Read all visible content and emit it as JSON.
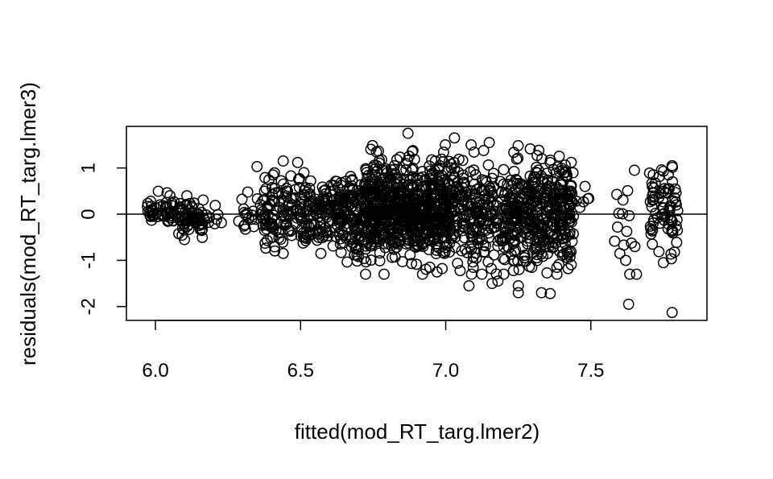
{
  "chart_data": {
    "type": "scatter",
    "title": "",
    "xlabel": "fitted(mod_RT_targ.lmer2)",
    "ylabel": "residuals(mod_RT_targ.lmer3)",
    "xlim": [
      5.9,
      7.9
    ],
    "ylim": [
      -2.3,
      1.9
    ],
    "x_ticks": [
      6.0,
      6.5,
      7.0,
      7.5
    ],
    "x_tick_labels": [
      "6.0",
      "6.5",
      "7.0",
      "7.5"
    ],
    "y_ticks": [
      -2,
      -1,
      0,
      1
    ],
    "y_tick_labels": [
      "-2",
      "-1",
      "0",
      "1"
    ],
    "reference_line_y": 0,
    "marker": "open-circle",
    "colors": {
      "marker": "#000000",
      "axis": "#000000",
      "background": "#ffffff"
    },
    "clusters": [
      {
        "x_range": [
          5.97,
          6.0
        ],
        "y_center": 0.05,
        "y_spread": 0.1,
        "count": 15
      },
      {
        "x_range": [
          6.0,
          6.08
        ],
        "y_center": 0.05,
        "y_spread": 0.15,
        "count": 35
      },
      {
        "x_range": [
          6.08,
          6.17
        ],
        "y_center": -0.05,
        "y_spread": 0.18,
        "count": 70
      },
      {
        "x_range": [
          6.17,
          6.23
        ],
        "y_center": -0.1,
        "y_spread": 0.12,
        "count": 8
      },
      {
        "x_range": [
          6.28,
          6.36
        ],
        "y_center": 0.0,
        "y_spread": 0.2,
        "count": 18
      },
      {
        "x_range": [
          6.36,
          6.5
        ],
        "y_center": 0.0,
        "y_spread": 0.4,
        "count": 110
      },
      {
        "x_range": [
          6.5,
          6.62
        ],
        "y_center": 0.0,
        "y_spread": 0.38,
        "count": 110
      },
      {
        "x_range": [
          6.62,
          6.72
        ],
        "y_center": 0.0,
        "y_spread": 0.45,
        "count": 140
      },
      {
        "x_range": [
          6.72,
          7.02
        ],
        "y_center": 0.1,
        "y_spread": 0.52,
        "count": 720
      },
      {
        "x_range": [
          7.02,
          7.12
        ],
        "y_center": 0.0,
        "y_spread": 0.55,
        "count": 130
      },
      {
        "x_range": [
          7.12,
          7.22
        ],
        "y_center": -0.1,
        "y_spread": 0.55,
        "count": 110
      },
      {
        "x_range": [
          7.22,
          7.44
        ],
        "y_center": 0.0,
        "y_spread": 0.58,
        "count": 380
      },
      {
        "x_range": [
          7.44,
          7.5
        ],
        "y_center": 0.3,
        "y_spread": 0.15,
        "count": 5
      },
      {
        "x_range": [
          7.58,
          7.7
        ],
        "y_center": -0.3,
        "y_spread": 0.45,
        "count": 14
      },
      {
        "x_range": [
          7.7,
          7.8
        ],
        "y_center": 0.1,
        "y_spread": 0.45,
        "count": 75
      }
    ],
    "points": [
      {
        "x": 7.03,
        "y": 1.65
      },
      {
        "x": 7.15,
        "y": 1.55
      },
      {
        "x": 6.87,
        "y": 1.75
      },
      {
        "x": 6.44,
        "y": 1.15
      },
      {
        "x": 6.49,
        "y": 1.12
      },
      {
        "x": 6.35,
        "y": 1.03
      },
      {
        "x": 7.65,
        "y": 0.95
      },
      {
        "x": 7.78,
        "y": 1.05
      },
      {
        "x": 6.05,
        "y": 0.4
      },
      {
        "x": 7.48,
        "y": 0.6
      },
      {
        "x": 7.08,
        "y": -1.55
      },
      {
        "x": 7.25,
        "y": -1.55
      },
      {
        "x": 7.33,
        "y": -1.7
      },
      {
        "x": 7.36,
        "y": -1.72
      },
      {
        "x": 7.25,
        "y": -1.7
      },
      {
        "x": 7.63,
        "y": -1.95
      },
      {
        "x": 7.78,
        "y": -2.13
      },
      {
        "x": 7.75,
        "y": -1.05
      },
      {
        "x": 7.62,
        "y": -1.0
      },
      {
        "x": 7.6,
        "y": -0.85
      },
      {
        "x": 6.1,
        "y": -0.55
      },
      {
        "x": 6.44,
        "y": -0.85
      },
      {
        "x": 6.57,
        "y": -0.85
      },
      {
        "x": 6.92,
        "y": -1.3
      },
      {
        "x": 6.97,
        "y": -1.25
      },
      {
        "x": 7.2,
        "y": -1.3
      },
      {
        "x": 7.18,
        "y": -1.45
      },
      {
        "x": 7.16,
        "y": -1.5
      }
    ]
  }
}
